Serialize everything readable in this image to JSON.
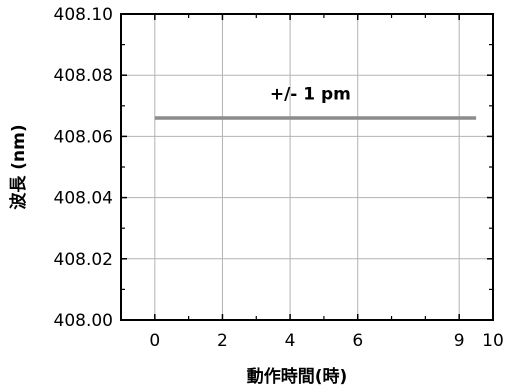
{
  "chart_data": {
    "type": "line",
    "xlabel": "動作時間(時)",
    "ylabel": "波長 (nm)",
    "xlim": [
      -1,
      10
    ],
    "ylim": [
      408.0,
      408.1
    ],
    "x_ticks": [
      {
        "value": 0,
        "label": "0"
      },
      {
        "value": 2,
        "label": "2"
      },
      {
        "value": 4,
        "label": "4"
      },
      {
        "value": 6,
        "label": "6"
      },
      {
        "value": 9,
        "label": "9"
      },
      {
        "value": 10,
        "label": "10"
      }
    ],
    "y_ticks": [
      {
        "value": 408.0,
        "label": "408.00"
      },
      {
        "value": 408.02,
        "label": "408.02"
      },
      {
        "value": 408.04,
        "label": "408.04"
      },
      {
        "value": 408.06,
        "label": "408.06"
      },
      {
        "value": 408.08,
        "label": "408.08"
      },
      {
        "value": 408.1,
        "label": "408.10"
      }
    ],
    "grid": true,
    "series": [
      {
        "color": "#8c8c8c",
        "x": [
          0,
          9.5
        ],
        "y": [
          408.066,
          408.066
        ]
      }
    ],
    "annotations": [
      {
        "text": "+/- 1 pm",
        "x": 4.6,
        "y": 408.072
      }
    ]
  }
}
